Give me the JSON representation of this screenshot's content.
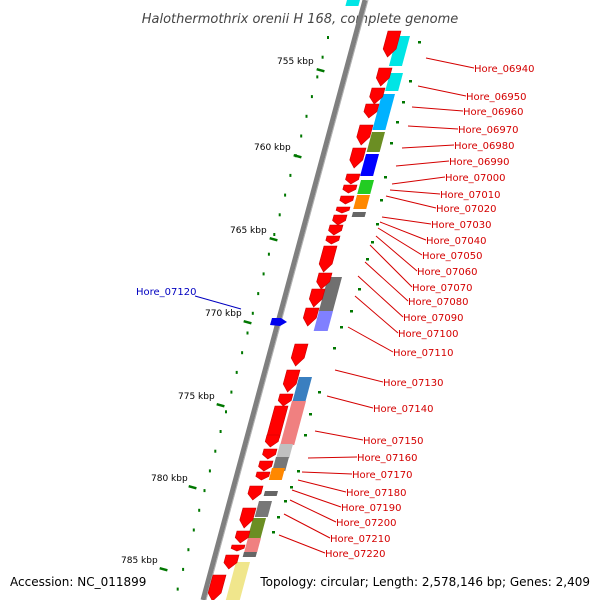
{
  "title": "Halothermothrix orenii H 168, complete genome",
  "footer": {
    "accession": "Accession: NC_011899",
    "topology": "Topology: circular; Length: 2,578,146 bp; Genes: 2,409"
  },
  "colors": {
    "backbone": "#808080",
    "forward_gene": "#ff0000",
    "leader_right": "#d40000",
    "leader_left": "#0000c0",
    "tick": "#007700"
  },
  "kbp_ticks": [
    "755 kbp",
    "760 kbp",
    "765 kbp",
    "770 kbp",
    "775 kbp",
    "780 kbp",
    "785 kbp"
  ],
  "gene_labels_right": [
    "Hore_06940",
    "Hore_06950",
    "Hore_06960",
    "Hore_06970",
    "Hore_06980",
    "Hore_06990",
    "Hore_07000",
    "Hore_07010",
    "Hore_07020",
    "Hore_07030",
    "Hore_07040",
    "Hore_07050",
    "Hore_07060",
    "Hore_07070",
    "Hore_07080",
    "Hore_07090",
    "Hore_07100",
    "Hore_07110",
    "Hore_07130",
    "Hore_07140",
    "Hore_07150",
    "Hore_07160",
    "Hore_07170",
    "Hore_07180",
    "Hore_07190",
    "Hore_07200",
    "Hore_07210",
    "Hore_07220"
  ],
  "gene_labels_left": [
    "Hore_07120"
  ]
}
